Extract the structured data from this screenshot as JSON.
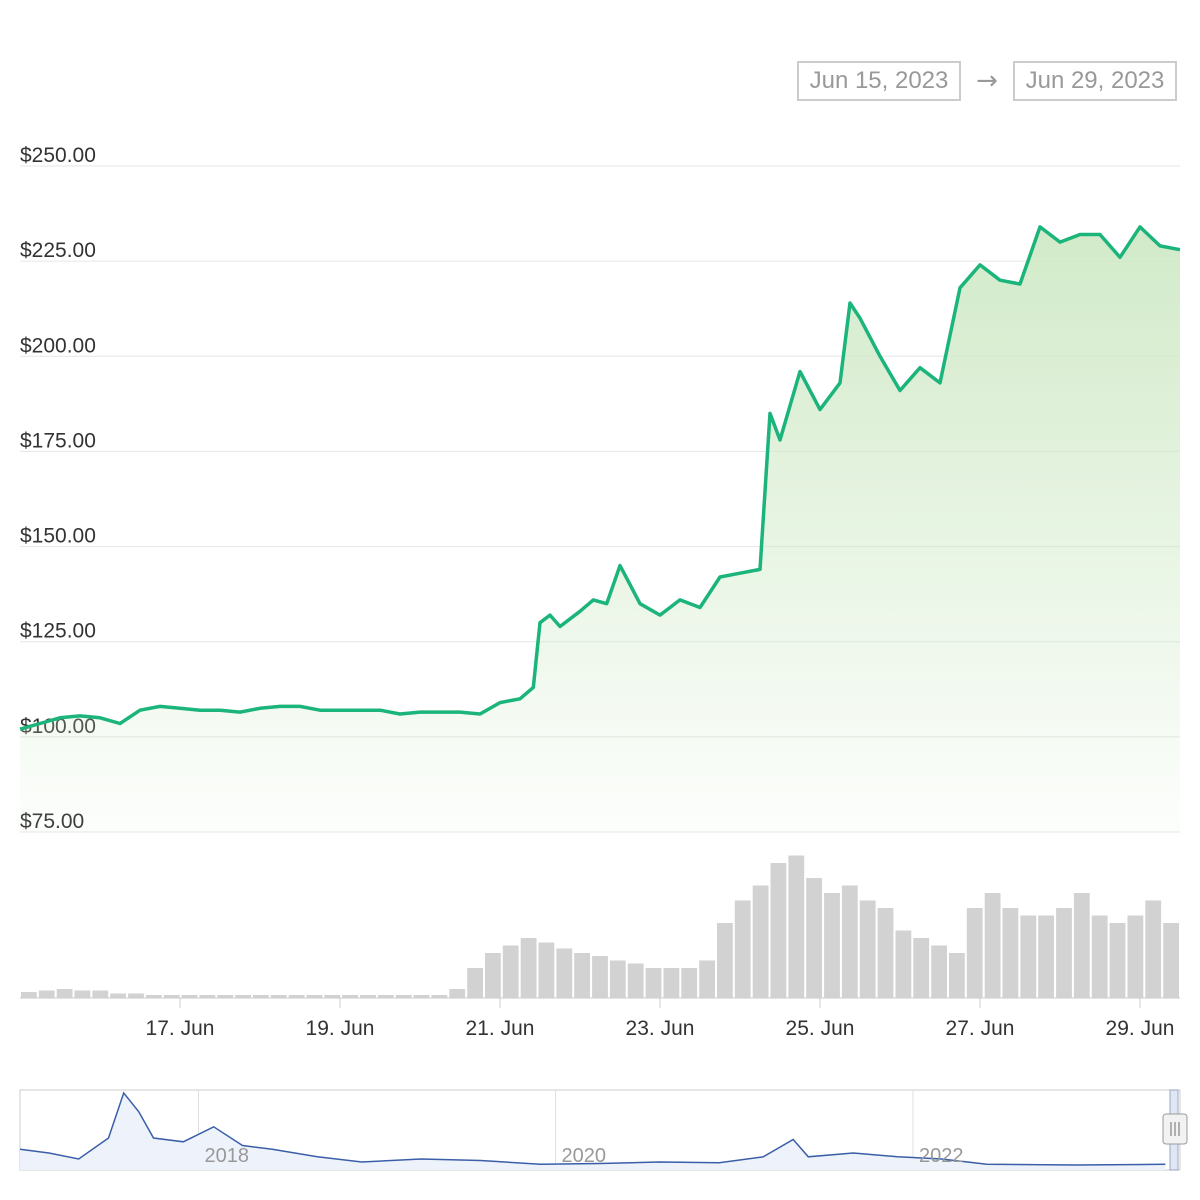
{
  "range_selector": {
    "from": "Jun 15, 2023",
    "arrow": "→",
    "to": "Jun 29, 2023"
  },
  "colors": {
    "price_line": "#1bb47a",
    "area_fill": "#c8e8c0",
    "volume_bar": "#d2d2d2",
    "navigator_line": "#3a5ea8",
    "grid": "#e6e6e6",
    "axis_text": "#333333"
  },
  "chart_data": {
    "type": "line",
    "title": "",
    "xlabel": "",
    "ylabel": "",
    "y_tick_labels": [
      "$75.00",
      "$100.00",
      "$125.00",
      "$150.00",
      "$175.00",
      "$200.00",
      "$225.00",
      "$250.00"
    ],
    "y_ticks": [
      75,
      100,
      125,
      150,
      175,
      200,
      225,
      250
    ],
    "ylim": [
      75,
      250
    ],
    "x_tick_labels": [
      "17. Jun",
      "19. Jun",
      "21. Jun",
      "23. Jun",
      "25. Jun",
      "27. Jun",
      "29. Jun"
    ],
    "x_range": [
      "2023-06-15",
      "2023-06-29"
    ],
    "grid": true,
    "series": [
      {
        "values": [
          [
            "2023-06-15 00:00",
            102
          ],
          [
            "2023-06-15 06:00",
            103.5
          ],
          [
            "2023-06-15 12:00",
            105
          ],
          [
            "2023-06-15 18:00",
            105.5
          ],
          [
            "2023-06-16 00:00",
            105
          ],
          [
            "2023-06-16 06:00",
            103.5
          ],
          [
            "2023-06-16 12:00",
            107
          ],
          [
            "2023-06-16 18:00",
            108
          ],
          [
            "2023-06-17 00:00",
            107.5
          ],
          [
            "2023-06-17 06:00",
            107
          ],
          [
            "2023-06-17 12:00",
            107
          ],
          [
            "2023-06-17 18:00",
            106.5
          ],
          [
            "2023-06-18 00:00",
            107.5
          ],
          [
            "2023-06-18 06:00",
            108
          ],
          [
            "2023-06-18 12:00",
            108
          ],
          [
            "2023-06-18 18:00",
            107
          ],
          [
            "2023-06-19 00:00",
            107
          ],
          [
            "2023-06-19 06:00",
            107
          ],
          [
            "2023-06-19 12:00",
            107
          ],
          [
            "2023-06-19 18:00",
            106
          ],
          [
            "2023-06-20 00:00",
            106.5
          ],
          [
            "2023-06-20 06:00",
            106.5
          ],
          [
            "2023-06-20 12:00",
            106.5
          ],
          [
            "2023-06-20 18:00",
            106
          ],
          [
            "2023-06-21 00:00",
            109
          ],
          [
            "2023-06-21 06:00",
            110
          ],
          [
            "2023-06-21 10:00",
            113
          ],
          [
            "2023-06-21 12:00",
            130
          ],
          [
            "2023-06-21 15:00",
            132
          ],
          [
            "2023-06-21 18:00",
            129
          ],
          [
            "2023-06-22 00:00",
            133
          ],
          [
            "2023-06-22 04:00",
            136
          ],
          [
            "2023-06-22 08:00",
            135
          ],
          [
            "2023-06-22 12:00",
            145
          ],
          [
            "2023-06-22 15:00",
            140
          ],
          [
            "2023-06-22 18:00",
            135
          ],
          [
            "2023-06-23 00:00",
            132
          ],
          [
            "2023-06-23 06:00",
            136
          ],
          [
            "2023-06-23 12:00",
            134
          ],
          [
            "2023-06-23 18:00",
            142
          ],
          [
            "2023-06-24 00:00",
            143
          ],
          [
            "2023-06-24 06:00",
            144
          ],
          [
            "2023-06-24 09:00",
            185
          ],
          [
            "2023-06-24 12:00",
            178
          ],
          [
            "2023-06-24 18:00",
            196
          ],
          [
            "2023-06-25 00:00",
            186
          ],
          [
            "2023-06-25 06:00",
            193
          ],
          [
            "2023-06-25 09:00",
            214
          ],
          [
            "2023-06-25 12:00",
            210
          ],
          [
            "2023-06-25 18:00",
            200
          ],
          [
            "2023-06-26 00:00",
            191
          ],
          [
            "2023-06-26 06:00",
            197
          ],
          [
            "2023-06-26 12:00",
            193
          ],
          [
            "2023-06-26 18:00",
            218
          ],
          [
            "2023-06-27 00:00",
            224
          ],
          [
            "2023-06-27 06:00",
            220
          ],
          [
            "2023-06-27 12:00",
            219
          ],
          [
            "2023-06-27 18:00",
            234
          ],
          [
            "2023-06-28 00:00",
            230
          ],
          [
            "2023-06-28 06:00",
            232
          ],
          [
            "2023-06-28 12:00",
            232
          ],
          [
            "2023-06-28 18:00",
            226
          ],
          [
            "2023-06-29 00:00",
            234
          ],
          [
            "2023-06-29 06:00",
            229
          ],
          [
            "2023-06-29 12:00",
            228
          ]
        ]
      }
    ],
    "volume": {
      "description_levels": [
        0.04,
        0.05,
        0.06,
        0.05,
        0.05,
        0.03,
        0.03,
        0.02,
        0.02,
        0.02,
        0.02,
        0.02,
        0.02,
        0.02,
        0.02,
        0.02,
        0.02,
        0.02,
        0.02,
        0.02,
        0.02,
        0.02,
        0.02,
        0.02,
        0.06,
        0.2,
        0.3,
        0.35,
        0.4,
        0.37,
        0.33,
        0.3,
        0.28,
        0.25,
        0.23,
        0.2,
        0.2,
        0.2,
        0.25,
        0.5,
        0.65,
        0.75,
        0.9,
        0.95,
        0.8,
        0.7,
        0.75,
        0.65,
        0.6,
        0.45,
        0.4,
        0.35,
        0.3,
        0.6,
        0.7,
        0.6,
        0.55,
        0.55,
        0.6,
        0.7,
        0.55,
        0.5,
        0.55,
        0.65,
        0.5
      ]
    },
    "navigator": {
      "x_tick_labels": [
        "2018",
        "2020",
        "2022"
      ],
      "values": [
        [
          "2017-01",
          0.25
        ],
        [
          "2017-03",
          0.2
        ],
        [
          "2017-05",
          0.12
        ],
        [
          "2017-07",
          0.4
        ],
        [
          "2017-08",
          1.0
        ],
        [
          "2017-09",
          0.75
        ],
        [
          "2017-10",
          0.4
        ],
        [
          "2017-12",
          0.35
        ],
        [
          "2018-02",
          0.55
        ],
        [
          "2018-04",
          0.3
        ],
        [
          "2018-06",
          0.25
        ],
        [
          "2018-09",
          0.15
        ],
        [
          "2018-12",
          0.08
        ],
        [
          "2019-04",
          0.12
        ],
        [
          "2019-08",
          0.1
        ],
        [
          "2019-12",
          0.05
        ],
        [
          "2020-04",
          0.06
        ],
        [
          "2020-08",
          0.08
        ],
        [
          "2020-12",
          0.07
        ],
        [
          "2021-03",
          0.15
        ],
        [
          "2021-05",
          0.38
        ],
        [
          "2021-06",
          0.15
        ],
        [
          "2021-09",
          0.2
        ],
        [
          "2021-12",
          0.15
        ],
        [
          "2022-03",
          0.12
        ],
        [
          "2022-06",
          0.05
        ],
        [
          "2022-12",
          0.04
        ],
        [
          "2023-06",
          0.05
        ]
      ]
    }
  }
}
